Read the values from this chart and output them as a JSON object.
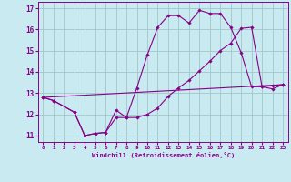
{
  "background_color": "#c8eaf0",
  "grid_color": "#a0c8c8",
  "line_color": "#880088",
  "marker_color": "#880088",
  "xlabel": "Windchill (Refroidissement éolien,°C)",
  "xlim": [
    -0.5,
    23.5
  ],
  "ylim": [
    10.7,
    17.3
  ],
  "yticks": [
    11,
    12,
    13,
    14,
    15,
    16,
    17
  ],
  "xticks": [
    0,
    1,
    2,
    3,
    4,
    5,
    6,
    7,
    8,
    9,
    10,
    11,
    12,
    13,
    14,
    15,
    16,
    17,
    18,
    19,
    20,
    21,
    22,
    23
  ],
  "series": [
    {
      "x": [
        0,
        1,
        3,
        4,
        5,
        6,
        7,
        8,
        9,
        10,
        11,
        12,
        13,
        14,
        15,
        16,
        17,
        18,
        19,
        20,
        21,
        22,
        23
      ],
      "y": [
        12.8,
        12.65,
        12.1,
        11.0,
        11.1,
        11.15,
        12.2,
        11.85,
        13.25,
        14.8,
        16.1,
        16.65,
        16.65,
        16.3,
        16.9,
        16.75,
        16.75,
        16.1,
        14.9,
        13.3,
        13.3,
        13.35,
        13.4
      ],
      "marker": true
    },
    {
      "x": [
        0,
        1,
        3,
        4,
        5,
        6,
        7,
        8,
        9,
        10,
        11,
        12,
        13,
        14,
        15,
        16,
        17,
        18,
        19,
        20,
        21,
        22,
        23
      ],
      "y": [
        12.8,
        12.65,
        12.1,
        11.0,
        11.1,
        11.15,
        11.85,
        11.85,
        11.85,
        12.0,
        12.3,
        12.85,
        13.25,
        13.6,
        14.05,
        14.5,
        15.0,
        15.35,
        16.05,
        16.1,
        13.3,
        13.2,
        13.4
      ],
      "marker": true
    },
    {
      "x": [
        0,
        23
      ],
      "y": [
        12.8,
        13.4
      ],
      "marker": false
    }
  ]
}
